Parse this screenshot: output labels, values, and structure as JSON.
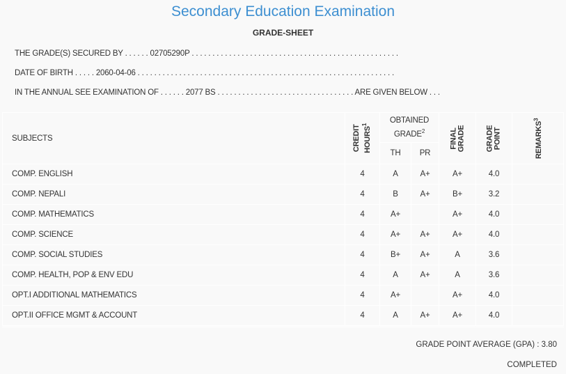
{
  "header": {
    "title": "Secondary Education Examination",
    "subtitle": "GRADE-SHEET"
  },
  "info": {
    "secured_by": "THE GRADE(S) SECURED BY . . . . . . 02705290P . . . . . . . . . . . . . . . . . . . . . . . . . . . . . . . . . . . . . . . . . . . . . . . . . .",
    "dob": "DATE OF BIRTH . . . . . 2060-04-06 . . . . . . . . . . . . . . . . . . . . . . . . . . . . . . . . . . . . . . . . . . . . . . . . . . . . . . . . . . . . . .",
    "exam": "IN THE ANNUAL SEE EXAMINATION OF . . . . . . 2077 BS . . . . . . . . . . . . . . . . . . . . . . . . . . . . . . . . . ARE GIVEN BELOW . . ."
  },
  "columns": {
    "subjects": "SUBJECTS",
    "credit_1": "CREDIT",
    "credit_2": "HOURS",
    "credit_sup": "1",
    "obtained_1": "OBTAINED",
    "obtained_2": "GRADE",
    "obtained_sup": "2",
    "th": "TH",
    "pr": "PR",
    "final_1": "FINAL",
    "final_2": "GRADE",
    "point_1": "GRADE",
    "point_2": "POINT",
    "remarks": "REMARKS",
    "remarks_sup": "3"
  },
  "rows": [
    {
      "subject": "COMP. ENGLISH",
      "credit": "4",
      "th": "A",
      "pr": "A+",
      "final": "A+",
      "point": "4.0",
      "remarks": ""
    },
    {
      "subject": "COMP. NEPALI",
      "credit": "4",
      "th": "B",
      "pr": "A+",
      "final": "B+",
      "point": "3.2",
      "remarks": ""
    },
    {
      "subject": "COMP. MATHEMATICS",
      "credit": "4",
      "th": "A+",
      "pr": "",
      "final": "A+",
      "point": "4.0",
      "remarks": ""
    },
    {
      "subject": "COMP. SCIENCE",
      "credit": "4",
      "th": "A+",
      "pr": "A+",
      "final": "A+",
      "point": "4.0",
      "remarks": ""
    },
    {
      "subject": "COMP. SOCIAL STUDIES",
      "credit": "4",
      "th": "B+",
      "pr": "A+",
      "final": "A",
      "point": "3.6",
      "remarks": ""
    },
    {
      "subject": "COMP. HEALTH, POP & ENV EDU",
      "credit": "4",
      "th": "A",
      "pr": "A+",
      "final": "A",
      "point": "3.6",
      "remarks": ""
    },
    {
      "subject": "OPT.I ADDITIONAL MATHEMATICS",
      "credit": "4",
      "th": "A+",
      "pr": "",
      "final": "A+",
      "point": "4.0",
      "remarks": ""
    },
    {
      "subject": "OPT.II OFFICE MGMT & ACCOUNT",
      "credit": "4",
      "th": "A",
      "pr": "A+",
      "final": "A+",
      "point": "4.0",
      "remarks": ""
    }
  ],
  "summary": {
    "gpa": "GRADE POINT AVERAGE (GPA) : 3.80",
    "status": "COMPLETED"
  },
  "colors": {
    "title": "#3d8fd1",
    "background": "#f9f9f9"
  }
}
